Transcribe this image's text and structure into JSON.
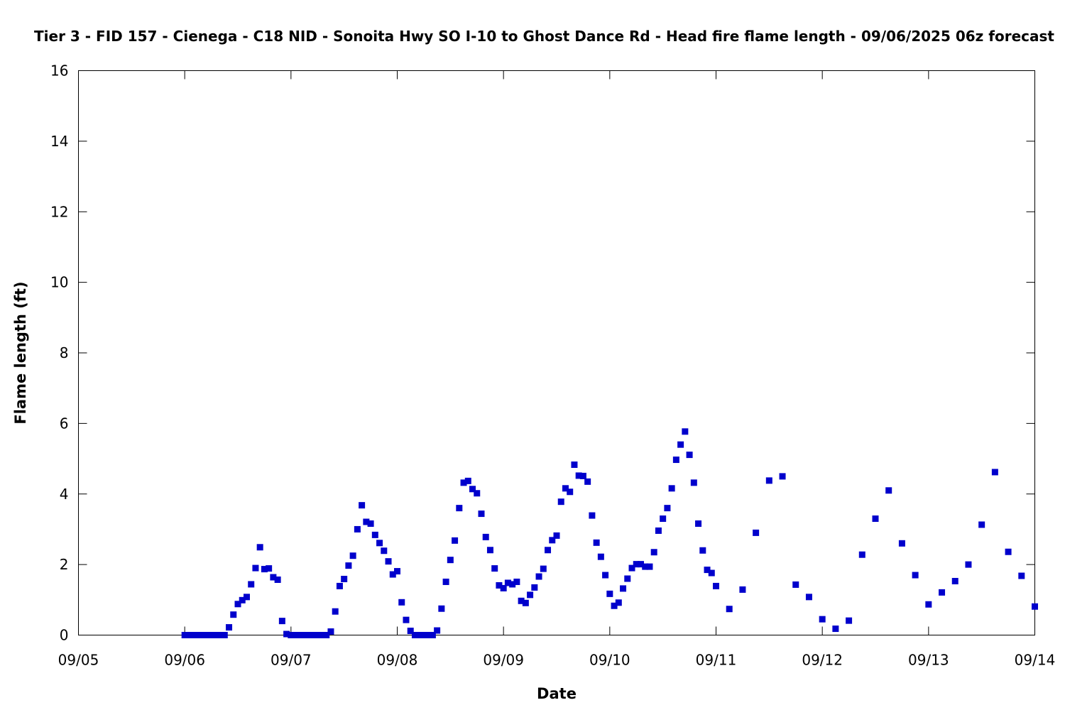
{
  "chart_data": {
    "type": "scatter",
    "title": "Tier 3 - FID 157 - Cienega - C18 NID - Sonoita Hwy SO I-10 to Ghost Dance Rd - Head fire flame length - 09/06/2025 06z forecast",
    "xlabel": "Date",
    "ylabel": "Flame length (ft)",
    "x_type": "date",
    "xlim": [
      "2025-09-05T00:00",
      "2025-09-14T00:00"
    ],
    "ylim": [
      0,
      16
    ],
    "x_tick_labels": [
      "09/05",
      "09/06",
      "09/07",
      "09/08",
      "09/09",
      "09/10",
      "09/11",
      "09/12",
      "09/13",
      "09/14"
    ],
    "y_tick_labels": [
      "0",
      "2",
      "4",
      "6",
      "8",
      "10",
      "12",
      "14",
      "16"
    ],
    "y_ticks": [
      0,
      2,
      4,
      6,
      8,
      10,
      12,
      14,
      16
    ],
    "grid": false,
    "legend": "none",
    "marker_color": "#0000cc",
    "series": [
      {
        "x": [
          "2025-09-06T00:00",
          "2025-09-06T01:00",
          "2025-09-06T02:00",
          "2025-09-06T03:00",
          "2025-09-06T04:00",
          "2025-09-06T05:00",
          "2025-09-06T06:00",
          "2025-09-06T07:00",
          "2025-09-06T08:00",
          "2025-09-06T09:00",
          "2025-09-06T10:00",
          "2025-09-06T11:00",
          "2025-09-06T12:00",
          "2025-09-06T13:00",
          "2025-09-06T14:00",
          "2025-09-06T15:00",
          "2025-09-06T16:00",
          "2025-09-06T17:00",
          "2025-09-06T18:00",
          "2025-09-06T19:00",
          "2025-09-06T20:00",
          "2025-09-06T21:00",
          "2025-09-06T22:00",
          "2025-09-06T23:00",
          "2025-09-07T00:00",
          "2025-09-07T01:00",
          "2025-09-07T02:00",
          "2025-09-07T03:00",
          "2025-09-07T04:00",
          "2025-09-07T05:00",
          "2025-09-07T06:00",
          "2025-09-07T07:00",
          "2025-09-07T08:00",
          "2025-09-07T09:00",
          "2025-09-07T10:00",
          "2025-09-07T11:00",
          "2025-09-07T12:00",
          "2025-09-07T13:00",
          "2025-09-07T14:00",
          "2025-09-07T15:00",
          "2025-09-07T16:00",
          "2025-09-07T17:00",
          "2025-09-07T18:00",
          "2025-09-07T19:00",
          "2025-09-07T20:00",
          "2025-09-07T21:00",
          "2025-09-07T22:00",
          "2025-09-07T23:00",
          "2025-09-08T00:00",
          "2025-09-08T01:00",
          "2025-09-08T02:00",
          "2025-09-08T03:00",
          "2025-09-08T04:00",
          "2025-09-08T05:00",
          "2025-09-08T06:00",
          "2025-09-08T07:00",
          "2025-09-08T08:00",
          "2025-09-08T09:00",
          "2025-09-08T10:00",
          "2025-09-08T11:00",
          "2025-09-08T12:00",
          "2025-09-08T13:00",
          "2025-09-08T14:00",
          "2025-09-08T15:00",
          "2025-09-08T16:00",
          "2025-09-08T17:00",
          "2025-09-08T18:00",
          "2025-09-08T19:00",
          "2025-09-08T20:00",
          "2025-09-08T21:00",
          "2025-09-08T22:00",
          "2025-09-08T23:00",
          "2025-09-09T00:00",
          "2025-09-09T01:00",
          "2025-09-09T02:00",
          "2025-09-09T03:00",
          "2025-09-09T04:00",
          "2025-09-09T05:00",
          "2025-09-09T06:00",
          "2025-09-09T07:00",
          "2025-09-09T08:00",
          "2025-09-09T09:00",
          "2025-09-09T10:00",
          "2025-09-09T11:00",
          "2025-09-09T12:00",
          "2025-09-09T13:00",
          "2025-09-09T14:00",
          "2025-09-09T15:00",
          "2025-09-09T16:00",
          "2025-09-09T17:00",
          "2025-09-09T18:00",
          "2025-09-09T19:00",
          "2025-09-09T20:00",
          "2025-09-09T21:00",
          "2025-09-09T22:00",
          "2025-09-09T23:00",
          "2025-09-10T00:00",
          "2025-09-10T01:00",
          "2025-09-10T02:00",
          "2025-09-10T03:00",
          "2025-09-10T04:00",
          "2025-09-10T05:00",
          "2025-09-10T06:00",
          "2025-09-10T07:00",
          "2025-09-10T08:00",
          "2025-09-10T09:00",
          "2025-09-10T10:00",
          "2025-09-10T11:00",
          "2025-09-10T12:00",
          "2025-09-10T13:00",
          "2025-09-10T14:00",
          "2025-09-10T15:00",
          "2025-09-10T16:00",
          "2025-09-10T17:00",
          "2025-09-10T18:00",
          "2025-09-10T19:00",
          "2025-09-10T20:00",
          "2025-09-10T21:00",
          "2025-09-10T22:00",
          "2025-09-10T23:00",
          "2025-09-11T00:00",
          "2025-09-11T03:00",
          "2025-09-11T06:00",
          "2025-09-11T09:00",
          "2025-09-11T12:00",
          "2025-09-11T15:00",
          "2025-09-11T18:00",
          "2025-09-11T21:00",
          "2025-09-12T00:00",
          "2025-09-12T03:00",
          "2025-09-12T06:00",
          "2025-09-12T09:00",
          "2025-09-12T12:00",
          "2025-09-12T15:00",
          "2025-09-12T18:00",
          "2025-09-12T21:00",
          "2025-09-13T00:00",
          "2025-09-13T03:00",
          "2025-09-13T06:00",
          "2025-09-13T09:00",
          "2025-09-13T12:00",
          "2025-09-13T15:00",
          "2025-09-13T18:00",
          "2025-09-13T21:00",
          "2025-09-14T00:00"
        ],
        "y": [
          0,
          0,
          0,
          0,
          0,
          0,
          0,
          0,
          0,
          0,
          0.22,
          0.58,
          0.88,
          0.99,
          1.08,
          1.44,
          1.9,
          2.49,
          1.87,
          1.89,
          1.64,
          1.57,
          0.4,
          0.03,
          0,
          0,
          0,
          0,
          0,
          0,
          0,
          0,
          0,
          0.1,
          0.67,
          1.39,
          1.59,
          1.97,
          2.25,
          3.0,
          3.68,
          3.21,
          3.16,
          2.84,
          2.61,
          2.39,
          2.09,
          1.72,
          1.81,
          0.93,
          0.43,
          0.12,
          0,
          0,
          0,
          0,
          0,
          0.13,
          0.75,
          1.51,
          2.13,
          2.68,
          3.6,
          4.32,
          4.37,
          4.14,
          4.02,
          3.44,
          2.78,
          2.41,
          1.89,
          1.41,
          1.33,
          1.48,
          1.44,
          1.51,
          0.97,
          0.91,
          1.14,
          1.35,
          1.66,
          1.88,
          2.41,
          2.69,
          2.82,
          3.78,
          4.16,
          4.06,
          4.83,
          4.52,
          4.51,
          4.35,
          3.39,
          2.62,
          2.22,
          1.7,
          1.17,
          0.83,
          0.92,
          1.32,
          1.6,
          1.9,
          2.01,
          2.01,
          1.94,
          1.94,
          2.35,
          2.96,
          3.3,
          3.6,
          4.16,
          4.97,
          5.4,
          5.77,
          5.11,
          4.32,
          3.16,
          2.4,
          1.85,
          1.76,
          1.39,
          0.74,
          1.29,
          2.9,
          4.38,
          4.5,
          1.43,
          1.08,
          0.45,
          0.18,
          0.41,
          2.28,
          3.3,
          4.1,
          2.6,
          1.7,
          0.87,
          1.21,
          1.53,
          2.0,
          3.13,
          4.62,
          2.36,
          1.68,
          0.81
        ]
      }
    ]
  }
}
